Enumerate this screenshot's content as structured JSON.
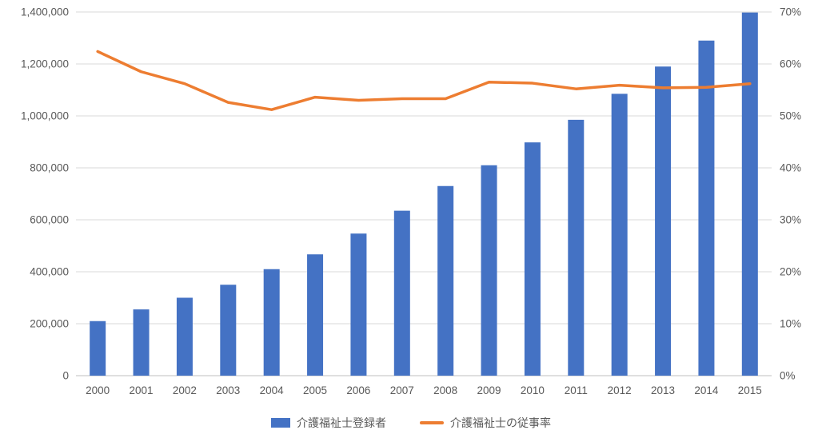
{
  "colors": {
    "bar": "#4472C4",
    "line": "#ED7D31",
    "gridline": "#D9D9D9",
    "axis_line": "#BFBFBF",
    "axis_text": "#595959",
    "background": "#FFFFFF"
  },
  "chart_data": {
    "type": "combo",
    "title": "",
    "categories": [
      "2000",
      "2001",
      "2002",
      "2003",
      "2004",
      "2005",
      "2006",
      "2007",
      "2008",
      "2009",
      "2010",
      "2011",
      "2012",
      "2013",
      "2014",
      "2015"
    ],
    "series": [
      {
        "name": "介護福祉士登録者",
        "type": "bar",
        "axis": "left",
        "color": "#4472C4",
        "values": [
          210000,
          255000,
          300000,
          350000,
          410000,
          467000,
          547000,
          635000,
          730000,
          810000,
          898000,
          985000,
          1085000,
          1190000,
          1290000,
          1398000
        ]
      },
      {
        "name": "介護福祉士の従事率",
        "type": "line",
        "axis": "right",
        "color": "#ED7D31",
        "values": [
          62.4,
          58.5,
          56.2,
          52.6,
          51.2,
          53.6,
          53.0,
          53.3,
          53.3,
          56.5,
          56.3,
          55.2,
          55.9,
          55.4,
          55.5,
          56.2
        ]
      }
    ],
    "left_axis": {
      "min": 0,
      "max": 1400000,
      "step": 200000,
      "format": "number"
    },
    "right_axis": {
      "min": 0,
      "max": 70,
      "step": 10,
      "format": "percent"
    },
    "grid": true,
    "legend_position": "bottom"
  }
}
